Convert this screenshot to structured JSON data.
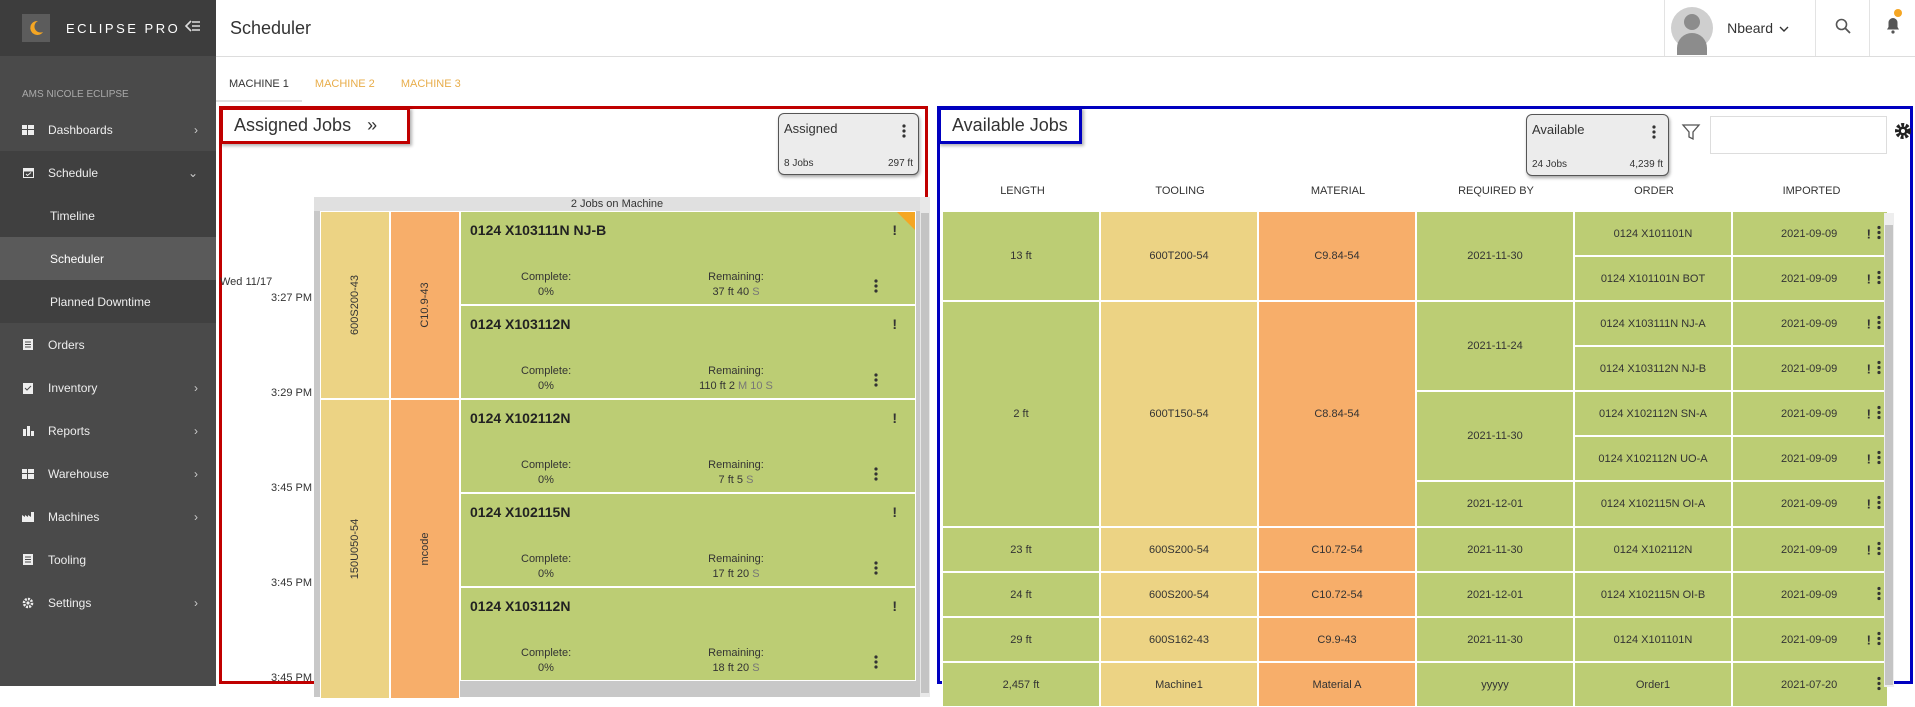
{
  "brand": {
    "name": "ECLIPSE PRO"
  },
  "org_name": "AMS NICOLE ECLIPSE",
  "nav": {
    "dashboards": "Dashboards",
    "schedule": "Schedule",
    "timeline": "Timeline",
    "scheduler": "Scheduler",
    "planned_downtime": "Planned Downtime",
    "orders": "Orders",
    "inventory": "Inventory",
    "reports": "Reports",
    "warehouse": "Warehouse",
    "machines": "Machines",
    "tooling": "Tooling",
    "settings": "Settings"
  },
  "header": {
    "title": "Scheduler",
    "username": "Nbeard"
  },
  "tabs": [
    "MACHINE 1",
    "MACHINE 2",
    "MACHINE 3"
  ],
  "colors": {
    "accent": "#f5a623",
    "assigned_border": "#c00000",
    "available_border": "#0000c0",
    "job_green": "#bccd74",
    "tool_yellow": "#ecd384",
    "material_orange": "#f7ae6a"
  },
  "assigned": {
    "title": "Assigned Jobs",
    "card": {
      "label": "Assigned",
      "count": "8 Jobs",
      "length": "297 ft"
    },
    "date": "Wed 11/17",
    "machine_header": "2 Jobs on Machine",
    "times": [
      "3:27 PM",
      "3:29 PM",
      "3:45 PM",
      "3:45 PM",
      "3:45 PM"
    ],
    "groups": [
      {
        "tooling": "600S200-43",
        "material": "C10.9-43"
      },
      {
        "tooling": "150U050-54",
        "material": "mcode"
      }
    ],
    "complete_label": "Complete:",
    "remaining_label": "Remaining:",
    "jobs": [
      {
        "name": "0124 X103111N NJ-B",
        "complete": "0%",
        "remaining": "37 ft",
        "time": "40",
        "unit": "S"
      },
      {
        "name": "0124 X103112N",
        "complete": "0%",
        "remaining": "110 ft",
        "time": "2",
        "unit": "M 10 S"
      },
      {
        "name": "0124 X102112N",
        "complete": "0%",
        "remaining": "7 ft",
        "time": "5",
        "unit": "S"
      },
      {
        "name": "0124 X102115N",
        "complete": "0%",
        "remaining": "17 ft",
        "time": "20",
        "unit": "S"
      },
      {
        "name": "0124 X103112N",
        "complete": "0%",
        "remaining": "18 ft",
        "time": "20",
        "unit": "S"
      }
    ]
  },
  "available": {
    "title": "Available Jobs",
    "card": {
      "label": "Available",
      "count": "24 Jobs",
      "length": "4,239 ft"
    },
    "columns": [
      "LENGTH",
      "TOOLING",
      "MATERIAL",
      "REQUIRED BY",
      "ORDER",
      "IMPORTED"
    ],
    "groups": [
      {
        "length": "13 ft",
        "tooling": "600T200-54",
        "material": "C9.84-54"
      },
      {
        "length": "2 ft",
        "tooling": "600T150-54",
        "material": "C8.84-54"
      },
      {
        "length": "23 ft",
        "tooling": "600S200-54",
        "material": "C10.72-54"
      },
      {
        "length": "24 ft",
        "tooling": "600S200-54",
        "material": "C10.72-54"
      },
      {
        "length": "29 ft",
        "tooling": "600S162-43",
        "material": "C9.9-43"
      },
      {
        "length": "2,457 ft",
        "tooling": "Machine1",
        "material": "Material A"
      }
    ],
    "required_by": [
      "2021-11-30",
      "2021-11-24",
      "2021-11-30",
      "2021-12-01",
      "2021-11-30",
      "2021-12-01",
      "2021-11-30",
      "yyyyy"
    ],
    "rows": [
      {
        "order": "0124 X101101N",
        "imported": "2021-09-09"
      },
      {
        "order": "0124 X101101N BOT",
        "imported": "2021-09-09"
      },
      {
        "order": "0124 X103111N NJ-A",
        "imported": "2021-09-09"
      },
      {
        "order": "0124 X103112N NJ-B",
        "imported": "2021-09-09"
      },
      {
        "order": "0124 X102112N SN-A",
        "imported": "2021-09-09"
      },
      {
        "order": "0124 X102112N UO-A",
        "imported": "2021-09-09"
      },
      {
        "order": "0124 X102115N OI-A",
        "imported": "2021-09-09"
      },
      {
        "order": "0124 X102112N",
        "imported": "2021-09-09"
      },
      {
        "order": "0124 X102115N OI-B",
        "imported": "2021-09-09"
      },
      {
        "order": "0124 X101101N",
        "imported": "2021-09-09"
      },
      {
        "order": "Order1",
        "imported": "2021-07-20"
      }
    ]
  }
}
